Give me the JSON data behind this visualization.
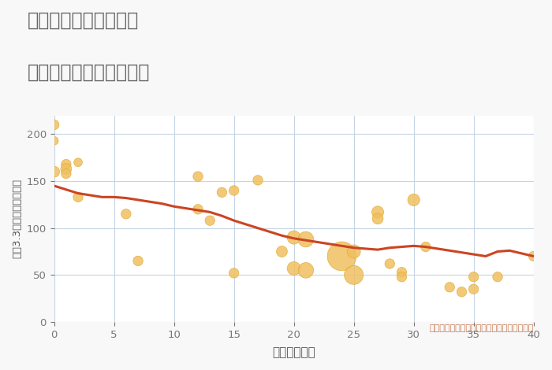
{
  "title_line1": "兵庫県西宮市薬師町の",
  "title_line2": "築年数別中古戸建て価格",
  "xlabel": "築年数（年）",
  "ylabel": "坪（3.3㎡）単価（万円）",
  "annotation": "円の大きさは、取引のあった物件面積を示す",
  "background_color": "#f8f8f8",
  "plot_bg_color": "#ffffff",
  "grid_color": "#c5d5e5",
  "title_color": "#666666",
  "xlabel_color": "#555555",
  "ylabel_color": "#555555",
  "annotation_color": "#c87850",
  "bubble_color": "#f0c060",
  "bubble_edge_color": "#e0a830",
  "trend_color": "#cc4422",
  "xlim": [
    0,
    40
  ],
  "ylim": [
    0,
    220
  ],
  "xticks": [
    0,
    5,
    10,
    15,
    20,
    25,
    30,
    35,
    40
  ],
  "yticks": [
    0,
    50,
    100,
    150,
    200
  ],
  "scatter_x": [
    0,
    0,
    0,
    1,
    1,
    1,
    2,
    2,
    6,
    7,
    12,
    12,
    13,
    14,
    15,
    15,
    17,
    19,
    20,
    20,
    21,
    21,
    24,
    25,
    25,
    27,
    27,
    28,
    29,
    29,
    30,
    31,
    33,
    34,
    35,
    35,
    37,
    40
  ],
  "scatter_y": [
    210,
    193,
    160,
    168,
    163,
    158,
    170,
    133,
    115,
    65,
    155,
    120,
    108,
    138,
    52,
    140,
    151,
    75,
    57,
    90,
    88,
    55,
    70,
    75,
    50,
    117,
    110,
    62,
    53,
    48,
    130,
    80,
    37,
    32,
    48,
    35,
    48,
    70
  ],
  "scatter_size": [
    80,
    60,
    100,
    80,
    100,
    80,
    60,
    80,
    80,
    80,
    80,
    80,
    80,
    80,
    80,
    80,
    80,
    100,
    150,
    150,
    200,
    200,
    700,
    150,
    300,
    120,
    100,
    80,
    80,
    80,
    120,
    80,
    80,
    80,
    80,
    80,
    80,
    80
  ],
  "trend_x": [
    0,
    1,
    2,
    3,
    4,
    5,
    6,
    7,
    8,
    9,
    10,
    11,
    12,
    13,
    14,
    15,
    16,
    17,
    18,
    19,
    20,
    21,
    22,
    23,
    24,
    25,
    26,
    27,
    28,
    29,
    30,
    31,
    32,
    33,
    34,
    35,
    36,
    37,
    38,
    39,
    40
  ],
  "trend_y": [
    145,
    141,
    137,
    135,
    133,
    133,
    132,
    130,
    128,
    126,
    123,
    121,
    119,
    117,
    113,
    108,
    104,
    100,
    96,
    92,
    89,
    87,
    85,
    83,
    81,
    79,
    78,
    77,
    79,
    80,
    81,
    80,
    78,
    76,
    74,
    72,
    70,
    75,
    76,
    73,
    70
  ]
}
